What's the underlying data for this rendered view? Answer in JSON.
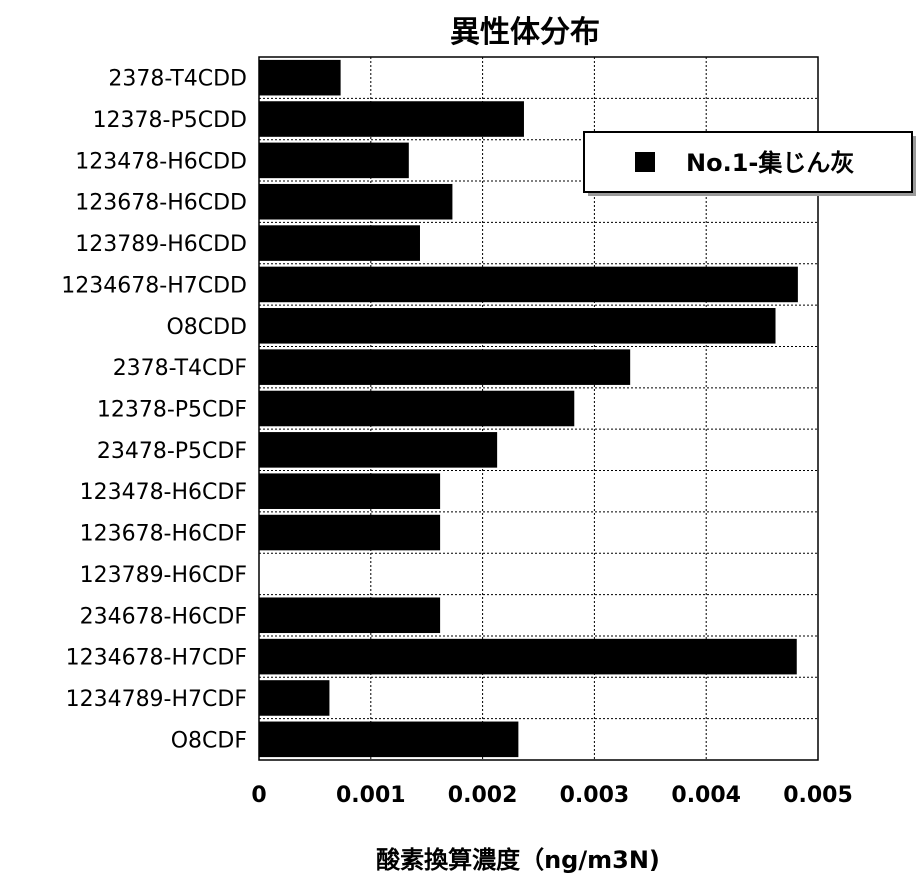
{
  "chart_data": {
    "type": "bar",
    "orientation": "horizontal",
    "title": "異性体分布",
    "xlabel": "酸素換算濃度（ng/m3N)",
    "ylabel": "",
    "xlim": [
      0,
      0.005
    ],
    "x_ticks": [
      "0",
      "0.001",
      "0.002",
      "0.003",
      "0.004",
      "0.005"
    ],
    "grid": true,
    "legend_position": "top-right",
    "categories": [
      "2378-T4CDD",
      "12378-P5CDD",
      "123478-H6CDD",
      "123678-H6CDD",
      "123789-H6CDD",
      "1234678-H7CDD",
      "O8CDD",
      "2378-T4CDF",
      "12378-P5CDF",
      "23478-P5CDF",
      "123478-H6CDF",
      "123678-H6CDF",
      "123789-H6CDF",
      "234678-H6CDF",
      "1234678-H7CDF",
      "1234789-H7CDF",
      "O8CDF"
    ],
    "series": [
      {
        "name": "No.1-集じん灰",
        "color": "#000000",
        "values": [
          0.00073,
          0.00237,
          0.00134,
          0.00173,
          0.00144,
          0.00482,
          0.00462,
          0.00332,
          0.00282,
          0.00213,
          0.00162,
          0.00162,
          0,
          0.00162,
          0.00481,
          0.00063,
          0.00232
        ]
      }
    ]
  }
}
